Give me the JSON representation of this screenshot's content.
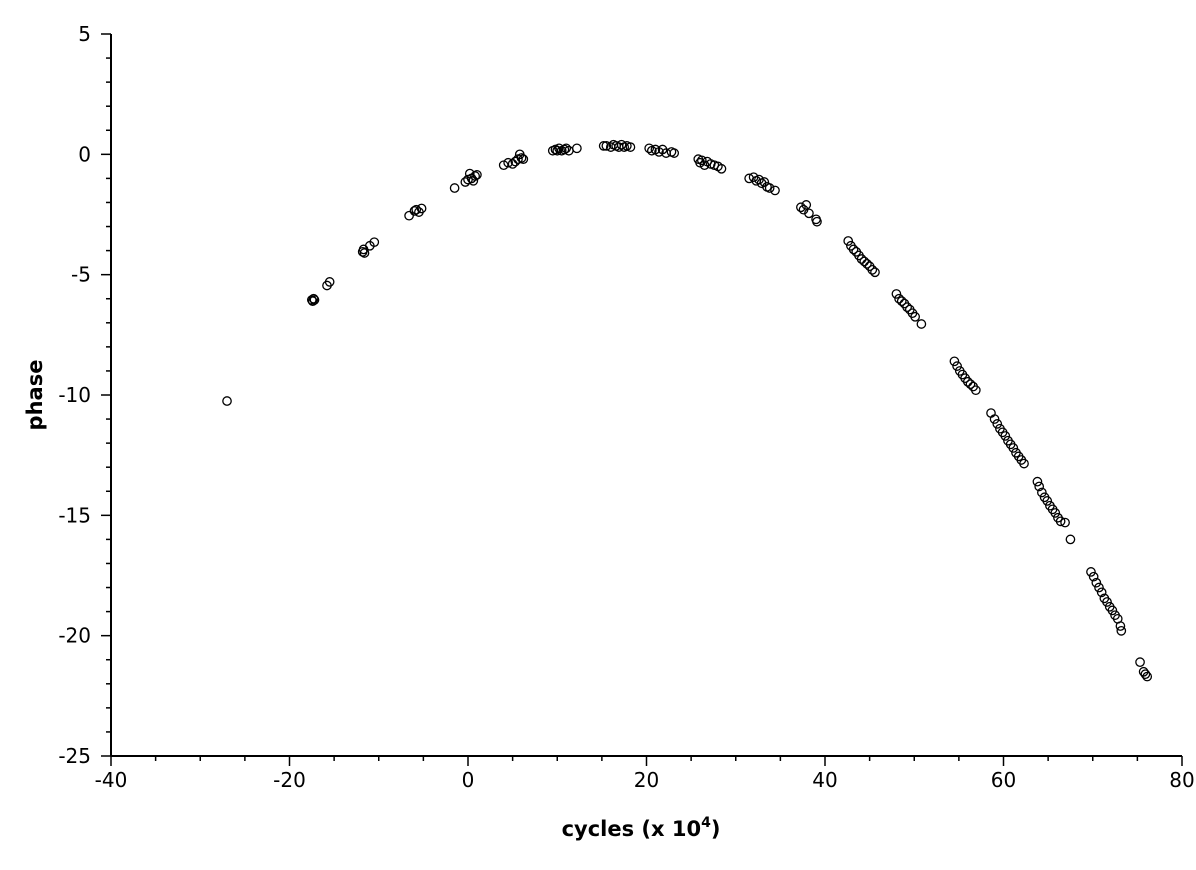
{
  "chart_data": {
    "type": "scatter",
    "title": "",
    "xlabel": "cycles (x 10",
    "xlabel_superscript": "4",
    "xlabel_suffix": ")",
    "ylabel": "phase",
    "xlim": [
      -40,
      80
    ],
    "ylim": [
      -25,
      5
    ],
    "x_ticks": [
      -40,
      -20,
      0,
      20,
      40,
      60,
      80
    ],
    "y_ticks": [
      5,
      0,
      -5,
      -10,
      -15,
      -20,
      -25
    ],
    "x_ticks_minor_step": 5,
    "y_ticks_minor_step": 1,
    "grid": false,
    "marker": "open-circle",
    "marker_color": "#000000",
    "series": [
      {
        "x": [
          -27.0,
          -17.5,
          -17.4,
          -17.3,
          -17.2,
          -15.8,
          -15.5,
          -11.8,
          -11.7,
          -11.6,
          -11.0,
          -10.5,
          -6.6,
          -6.0,
          -5.8,
          -5.5,
          -5.2,
          -1.5,
          -0.3,
          0.0,
          0.2,
          0.4,
          0.6,
          0.8,
          1.0,
          4.0,
          4.5,
          5.0,
          5.3,
          5.6,
          5.8,
          6.0,
          6.2,
          9.5,
          9.8,
          10.0,
          10.2,
          10.5,
          10.8,
          11.0,
          11.3,
          12.2,
          15.2,
          15.5,
          16.0,
          16.3,
          16.6,
          16.9,
          17.2,
          17.5,
          17.8,
          18.2,
          20.3,
          20.6,
          21.0,
          21.4,
          21.8,
          22.2,
          22.8,
          23.1,
          25.8,
          26.0,
          26.2,
          26.5,
          26.8,
          27.2,
          27.6,
          28.0,
          28.4,
          31.5,
          32.0,
          32.3,
          32.6,
          32.9,
          33.2,
          33.5,
          33.8,
          34.4,
          37.3,
          37.6,
          37.9,
          38.2,
          39.0,
          39.1,
          42.6,
          42.9,
          43.2,
          43.5,
          43.8,
          44.1,
          44.4,
          44.7,
          45.0,
          45.3,
          45.6,
          48.0,
          48.3,
          48.6,
          48.9,
          49.2,
          49.5,
          49.8,
          50.1,
          50.8,
          54.5,
          54.8,
          55.1,
          55.4,
          55.7,
          56.0,
          56.3,
          56.6,
          56.9,
          58.6,
          59.0,
          59.3,
          59.6,
          59.9,
          60.2,
          60.5,
          60.8,
          61.1,
          61.4,
          61.7,
          62.0,
          62.3,
          63.8,
          64.0,
          64.3,
          64.6,
          64.9,
          65.2,
          65.5,
          65.8,
          66.1,
          66.4,
          66.9,
          67.5,
          69.8,
          70.1,
          70.4,
          70.7,
          71.0,
          71.3,
          71.6,
          71.9,
          72.2,
          72.5,
          72.8,
          73.1,
          73.2,
          75.3,
          75.7,
          75.9,
          76.1
        ],
        "y": [
          -10.25,
          -6.05,
          -6.1,
          -6.0,
          -6.05,
          -5.45,
          -5.3,
          -4.05,
          -3.95,
          -4.1,
          -3.8,
          -3.65,
          -2.55,
          -2.35,
          -2.3,
          -2.4,
          -2.25,
          -1.4,
          -1.15,
          -1.05,
          -0.8,
          -1.0,
          -1.1,
          -0.9,
          -0.85,
          -0.45,
          -0.35,
          -0.4,
          -0.3,
          -0.2,
          0.0,
          -0.15,
          -0.2,
          0.15,
          0.2,
          0.15,
          0.25,
          0.15,
          0.2,
          0.25,
          0.15,
          0.25,
          0.35,
          0.35,
          0.3,
          0.4,
          0.35,
          0.3,
          0.4,
          0.3,
          0.35,
          0.3,
          0.25,
          0.15,
          0.2,
          0.1,
          0.2,
          0.05,
          0.1,
          0.05,
          -0.2,
          -0.35,
          -0.25,
          -0.45,
          -0.3,
          -0.4,
          -0.45,
          -0.5,
          -0.6,
          -1.0,
          -0.95,
          -1.1,
          -1.05,
          -1.2,
          -1.15,
          -1.35,
          -1.4,
          -1.5,
          -2.2,
          -2.3,
          -2.1,
          -2.45,
          -2.7,
          -2.8,
          -3.6,
          -3.8,
          -3.95,
          -4.05,
          -4.2,
          -4.35,
          -4.45,
          -4.55,
          -4.65,
          -4.8,
          -4.9,
          -5.8,
          -6.0,
          -6.1,
          -6.2,
          -6.35,
          -6.45,
          -6.6,
          -6.75,
          -7.05,
          -8.6,
          -8.8,
          -9.0,
          -9.15,
          -9.3,
          -9.45,
          -9.55,
          -9.65,
          -9.8,
          -10.75,
          -11.0,
          -11.2,
          -11.4,
          -11.55,
          -11.7,
          -11.9,
          -12.05,
          -12.2,
          -12.4,
          -12.55,
          -12.7,
          -12.85,
          -13.6,
          -13.8,
          -14.05,
          -14.25,
          -14.4,
          -14.6,
          -14.75,
          -14.9,
          -15.1,
          -15.25,
          -15.3,
          -16.0,
          -17.35,
          -17.55,
          -17.8,
          -18.0,
          -18.2,
          -18.45,
          -18.6,
          -18.8,
          -18.95,
          -19.15,
          -19.3,
          -19.6,
          -19.8,
          -21.1,
          -21.5,
          -21.6,
          -21.7
        ]
      }
    ]
  }
}
